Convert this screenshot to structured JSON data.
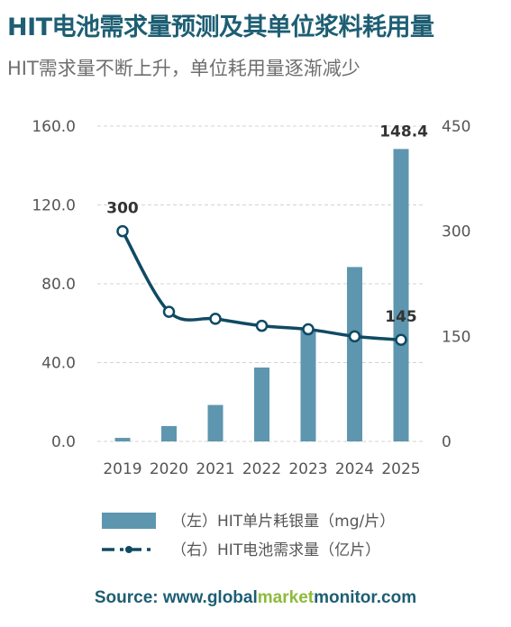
{
  "title": "HIT电池需求量预测及其单位浆料耗用量",
  "subtitle": "HIT需求量不断上升，单位耗用量逐渐减少",
  "source": {
    "prefix": "Source: www.",
    "part1": "global",
    "part2": "market",
    "part3": "monitor",
    "suffix": ".com"
  },
  "colors": {
    "bar": "#5e96af",
    "line": "#0f4a63",
    "title": "#1d5e73",
    "accent": "#8dbb3c",
    "text": "#555555",
    "grid": "#d3d3d3"
  },
  "chart_data": {
    "type": "bar+line",
    "categories": [
      "2019",
      "2020",
      "2021",
      "2022",
      "2023",
      "2024",
      "2025"
    ],
    "series": [
      {
        "name": "（左）HIT单片耗银量（mg/片）",
        "type": "bar",
        "axis": "left",
        "values": [
          1.8,
          7.8,
          18.5,
          37.5,
          56.5,
          88.5,
          148.4
        ]
      },
      {
        "name": "（右）HIT电池需求量（亿片）",
        "type": "line",
        "axis": "right",
        "values": [
          300,
          185,
          175,
          165,
          160,
          150,
          145
        ]
      }
    ],
    "y_left": {
      "ticks": [
        "0.0",
        "40.0",
        "80.0",
        "120.0",
        "160.0"
      ],
      "range": [
        0,
        160
      ]
    },
    "y_right": {
      "ticks": [
        "0",
        "150",
        "300",
        "450"
      ],
      "range": [
        0,
        450
      ]
    },
    "data_labels": [
      {
        "series": 0,
        "index": 6,
        "text": "148.4"
      },
      {
        "series": 1,
        "index": 0,
        "text": "300"
      },
      {
        "series": 1,
        "index": 6,
        "text": "145"
      }
    ],
    "grid": true,
    "legend_position": "bottom"
  }
}
